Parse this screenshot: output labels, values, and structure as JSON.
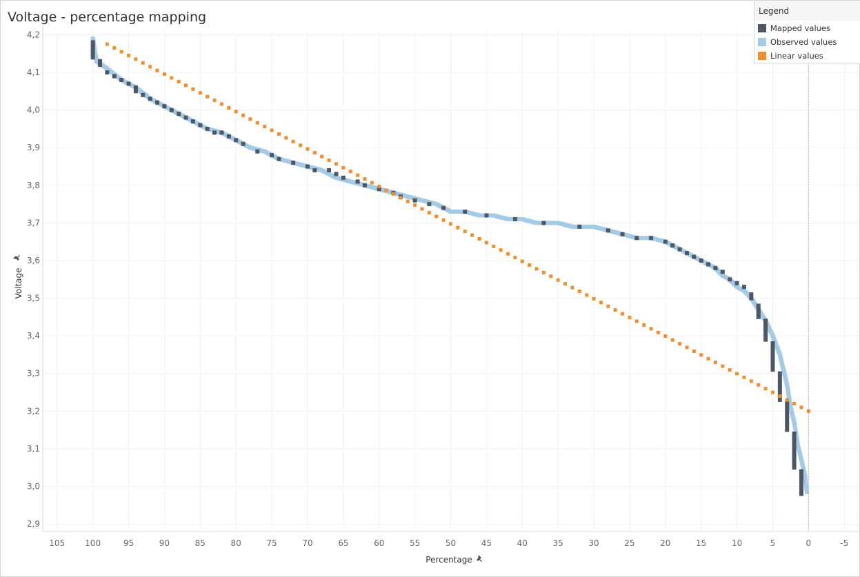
{
  "chart_data": {
    "type": "scatter",
    "title": "Voltage - percentage mapping",
    "xlabel": "Percentage",
    "ylabel": "Voltage",
    "x_reversed": true,
    "xlim": [
      -7,
      107
    ],
    "ylim": [
      2.88,
      4.21
    ],
    "x_ticks": [
      "105",
      "100",
      "95",
      "90",
      "85",
      "80",
      "75",
      "70",
      "65",
      "60",
      "55",
      "50",
      "45",
      "40",
      "35",
      "30",
      "25",
      "20",
      "15",
      "10",
      "5",
      "0",
      "-5"
    ],
    "x_tick_values": [
      105,
      100,
      95,
      90,
      85,
      80,
      75,
      70,
      65,
      60,
      55,
      50,
      45,
      40,
      35,
      30,
      25,
      20,
      15,
      10,
      5,
      0,
      -5
    ],
    "y_ticks": [
      "2,9",
      "3,0",
      "3,1",
      "3,2",
      "3,3",
      "3,4",
      "3,5",
      "3,6",
      "3,7",
      "3,8",
      "3,9",
      "4,0",
      "4,1",
      "4,2"
    ],
    "y_tick_values": [
      2.9,
      3.0,
      3.1,
      3.2,
      3.3,
      3.4,
      3.5,
      3.6,
      3.7,
      3.8,
      3.9,
      4.0,
      4.1,
      4.2
    ],
    "grid": true,
    "zero_line": true,
    "legend_position": "top-right",
    "legend": {
      "title": "Legend",
      "items": [
        {
          "label": "Mapped values",
          "color": "#4f5763"
        },
        {
          "label": "Observed values",
          "color": "#a4cbe6"
        },
        {
          "label": "Linear values",
          "color": "#f28e2b"
        }
      ]
    },
    "observed_curve": [
      [
        100,
        4.19
      ],
      [
        99.5,
        4.13
      ],
      [
        98,
        4.11
      ],
      [
        96,
        4.08
      ],
      [
        94,
        4.06
      ],
      [
        92,
        4.03
      ],
      [
        90,
        4.01
      ],
      [
        88,
        3.99
      ],
      [
        86,
        3.97
      ],
      [
        84,
        3.95
      ],
      [
        82,
        3.94
      ],
      [
        80,
        3.92
      ],
      [
        78,
        3.9
      ],
      [
        76,
        3.89
      ],
      [
        74,
        3.87
      ],
      [
        72,
        3.86
      ],
      [
        70,
        3.85
      ],
      [
        68,
        3.84
      ],
      [
        66,
        3.82
      ],
      [
        64,
        3.81
      ],
      [
        62,
        3.8
      ],
      [
        60,
        3.79
      ],
      [
        58,
        3.78
      ],
      [
        56,
        3.77
      ],
      [
        54,
        3.76
      ],
      [
        52,
        3.75
      ],
      [
        50,
        3.73
      ],
      [
        48,
        3.73
      ],
      [
        46,
        3.72
      ],
      [
        44,
        3.72
      ],
      [
        42,
        3.71
      ],
      [
        40,
        3.71
      ],
      [
        38,
        3.7
      ],
      [
        35,
        3.7
      ],
      [
        33,
        3.69
      ],
      [
        30,
        3.69
      ],
      [
        28,
        3.68
      ],
      [
        26,
        3.67
      ],
      [
        24,
        3.66
      ],
      [
        22,
        3.66
      ],
      [
        20,
        3.65
      ],
      [
        18,
        3.63
      ],
      [
        16,
        3.61
      ],
      [
        15,
        3.6
      ],
      [
        14,
        3.59
      ],
      [
        13,
        3.58
      ],
      [
        12,
        3.56
      ],
      [
        11,
        3.55
      ],
      [
        10,
        3.53
      ],
      [
        9,
        3.52
      ],
      [
        8,
        3.5
      ],
      [
        7,
        3.47
      ],
      [
        6,
        3.44
      ],
      [
        5,
        3.4
      ],
      [
        4,
        3.35
      ],
      [
        3.5,
        3.31
      ],
      [
        3,
        3.27
      ],
      [
        2.5,
        3.21
      ],
      [
        2,
        3.17
      ],
      [
        1.5,
        3.11
      ],
      [
        1,
        3.07
      ],
      [
        0.5,
        3.03
      ],
      [
        0.2,
        2.98
      ]
    ],
    "mapped_points": [
      [
        100,
        4.18
      ],
      [
        100,
        4.17
      ],
      [
        100,
        4.16
      ],
      [
        100,
        4.15
      ],
      [
        100,
        4.14
      ],
      [
        99,
        4.13
      ],
      [
        99,
        4.12
      ],
      [
        98,
        4.1
      ],
      [
        97,
        4.09
      ],
      [
        96,
        4.08
      ],
      [
        95,
        4.07
      ],
      [
        94,
        4.06
      ],
      [
        94,
        4.05
      ],
      [
        93,
        4.04
      ],
      [
        92,
        4.03
      ],
      [
        91,
        4.02
      ],
      [
        90,
        4.01
      ],
      [
        89,
        4.0
      ],
      [
        88,
        3.99
      ],
      [
        87,
        3.98
      ],
      [
        86,
        3.97
      ],
      [
        85,
        3.96
      ],
      [
        84,
        3.95
      ],
      [
        83,
        3.94
      ],
      [
        82,
        3.94
      ],
      [
        81,
        3.93
      ],
      [
        80,
        3.92
      ],
      [
        79,
        3.91
      ],
      [
        77,
        3.89
      ],
      [
        75,
        3.88
      ],
      [
        74,
        3.87
      ],
      [
        72,
        3.86
      ],
      [
        70,
        3.85
      ],
      [
        69,
        3.84
      ],
      [
        67,
        3.84
      ],
      [
        66,
        3.83
      ],
      [
        65,
        3.82
      ],
      [
        63,
        3.81
      ],
      [
        62,
        3.8
      ],
      [
        60,
        3.79
      ],
      [
        58,
        3.78
      ],
      [
        57,
        3.77
      ],
      [
        55,
        3.76
      ],
      [
        53,
        3.75
      ],
      [
        51,
        3.74
      ],
      [
        48,
        3.73
      ],
      [
        45,
        3.72
      ],
      [
        41,
        3.71
      ],
      [
        37,
        3.7
      ],
      [
        32,
        3.69
      ],
      [
        28,
        3.68
      ],
      [
        26,
        3.67
      ],
      [
        24,
        3.66
      ],
      [
        22,
        3.66
      ],
      [
        20,
        3.65
      ],
      [
        19,
        3.64
      ],
      [
        18,
        3.63
      ],
      [
        17,
        3.62
      ],
      [
        16,
        3.61
      ],
      [
        15,
        3.6
      ],
      [
        14,
        3.59
      ],
      [
        13,
        3.58
      ],
      [
        12,
        3.57
      ],
      [
        11,
        3.55
      ],
      [
        10,
        3.54
      ],
      [
        9,
        3.53
      ],
      [
        8,
        3.51
      ],
      [
        8,
        3.5
      ],
      [
        7,
        3.48
      ],
      [
        7,
        3.47
      ],
      [
        7,
        3.46
      ],
      [
        7,
        3.45
      ],
      [
        6,
        3.44
      ],
      [
        6,
        3.43
      ],
      [
        6,
        3.42
      ],
      [
        6,
        3.41
      ],
      [
        6,
        3.4
      ],
      [
        6,
        3.39
      ],
      [
        5,
        3.38
      ],
      [
        5,
        3.37
      ],
      [
        5,
        3.36
      ],
      [
        5,
        3.35
      ],
      [
        5,
        3.34
      ],
      [
        5,
        3.33
      ],
      [
        5,
        3.32
      ],
      [
        5,
        3.31
      ],
      [
        4,
        3.3
      ],
      [
        4,
        3.29
      ],
      [
        4,
        3.28
      ],
      [
        4,
        3.27
      ],
      [
        4,
        3.26
      ],
      [
        4,
        3.25
      ],
      [
        4,
        3.24
      ],
      [
        4,
        3.23
      ],
      [
        3,
        3.22
      ],
      [
        3,
        3.21
      ],
      [
        3,
        3.2
      ],
      [
        3,
        3.19
      ],
      [
        3,
        3.18
      ],
      [
        3,
        3.17
      ],
      [
        3,
        3.16
      ],
      [
        3,
        3.15
      ],
      [
        2,
        3.14
      ],
      [
        2,
        3.13
      ],
      [
        2,
        3.12
      ],
      [
        2,
        3.11
      ],
      [
        2,
        3.1
      ],
      [
        2,
        3.09
      ],
      [
        2,
        3.08
      ],
      [
        2,
        3.07
      ],
      [
        2,
        3.06
      ],
      [
        2,
        3.05
      ],
      [
        1,
        3.04
      ],
      [
        1,
        3.03
      ],
      [
        1,
        3.02
      ],
      [
        1,
        3.01
      ],
      [
        1,
        3.0
      ],
      [
        1,
        2.99
      ],
      [
        1,
        2.98
      ]
    ],
    "linear_start": [
      98,
      4.175
    ],
    "linear_end": [
      0,
      3.2
    ],
    "linear_count": 99
  }
}
